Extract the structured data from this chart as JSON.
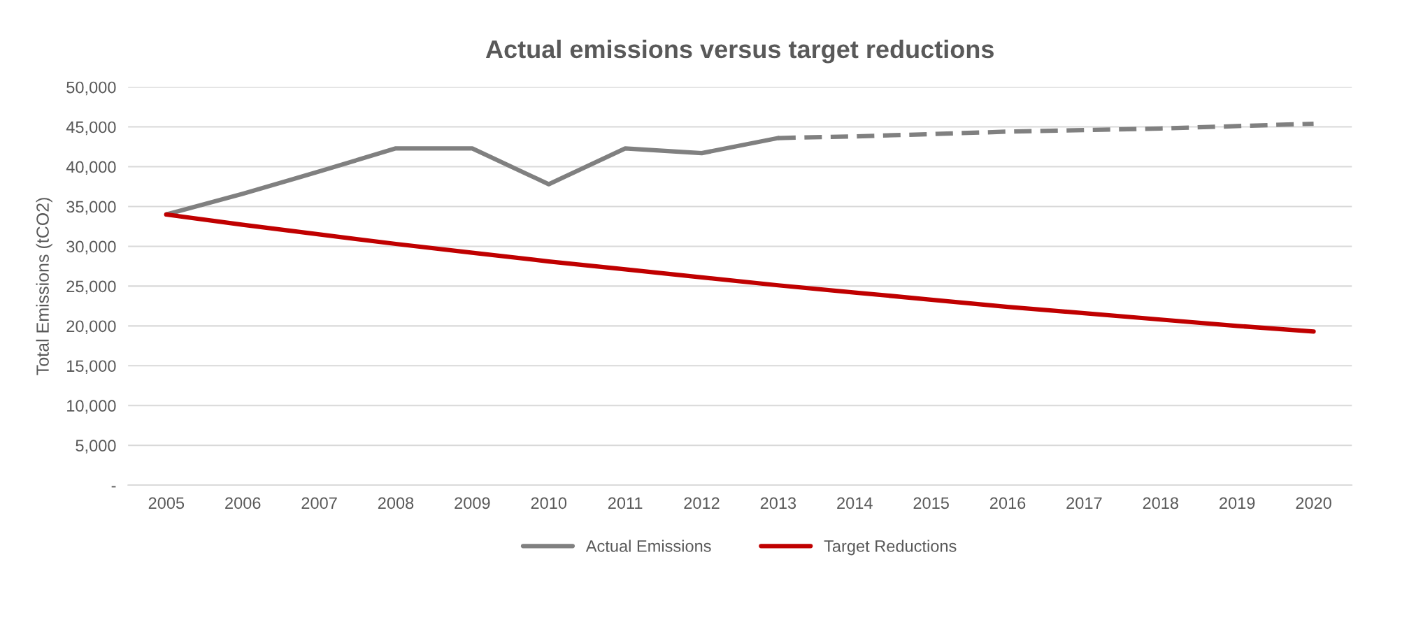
{
  "chart_data": {
    "type": "line",
    "title": "Actual emissions versus target reductions",
    "ylabel": "Total Emissions (tCO2)",
    "categories": [
      "2005",
      "2006",
      "2007",
      "2008",
      "2009",
      "2010",
      "2011",
      "2012",
      "2013",
      "2014",
      "2015",
      "2016",
      "2017",
      "2018",
      "2019",
      "2020"
    ],
    "series": [
      {
        "name": "Actual Emissions",
        "color": "#808080",
        "line_style": "solid",
        "values": [
          34000,
          36600,
          39400,
          42300,
          42300,
          37800,
          42300,
          41700,
          43600,
          null,
          null,
          null,
          null,
          null,
          null,
          null
        ]
      },
      {
        "color": "#808080",
        "line_style": "dashed",
        "values": [
          null,
          null,
          null,
          null,
          null,
          null,
          null,
          null,
          43600,
          43800,
          44100,
          44400,
          44600,
          44800,
          45100,
          45400
        ]
      },
      {
        "name": "Target Reductions",
        "color": "#c00000",
        "line_style": "solid",
        "values": [
          34000,
          32700,
          31500,
          30300,
          29200,
          28100,
          27100,
          26100,
          25100,
          24200,
          23300,
          22400,
          21600,
          20800,
          20000,
          19300
        ]
      }
    ],
    "ylim": [
      0,
      50000
    ],
    "yticks": [
      {
        "value": 0,
        "label": "-"
      },
      {
        "value": 5000,
        "label": "5,000"
      },
      {
        "value": 10000,
        "label": "10,000"
      },
      {
        "value": 15000,
        "label": "15,000"
      },
      {
        "value": 20000,
        "label": "20,000"
      },
      {
        "value": 25000,
        "label": "25,000"
      },
      {
        "value": 30000,
        "label": "30,000"
      },
      {
        "value": 35000,
        "label": "35,000"
      },
      {
        "value": 40000,
        "label": "40,000"
      },
      {
        "value": 45000,
        "label": "45,000"
      },
      {
        "value": 50000,
        "label": "50,000"
      }
    ],
    "grid": "y",
    "legend": "bottom",
    "marker": "none"
  }
}
